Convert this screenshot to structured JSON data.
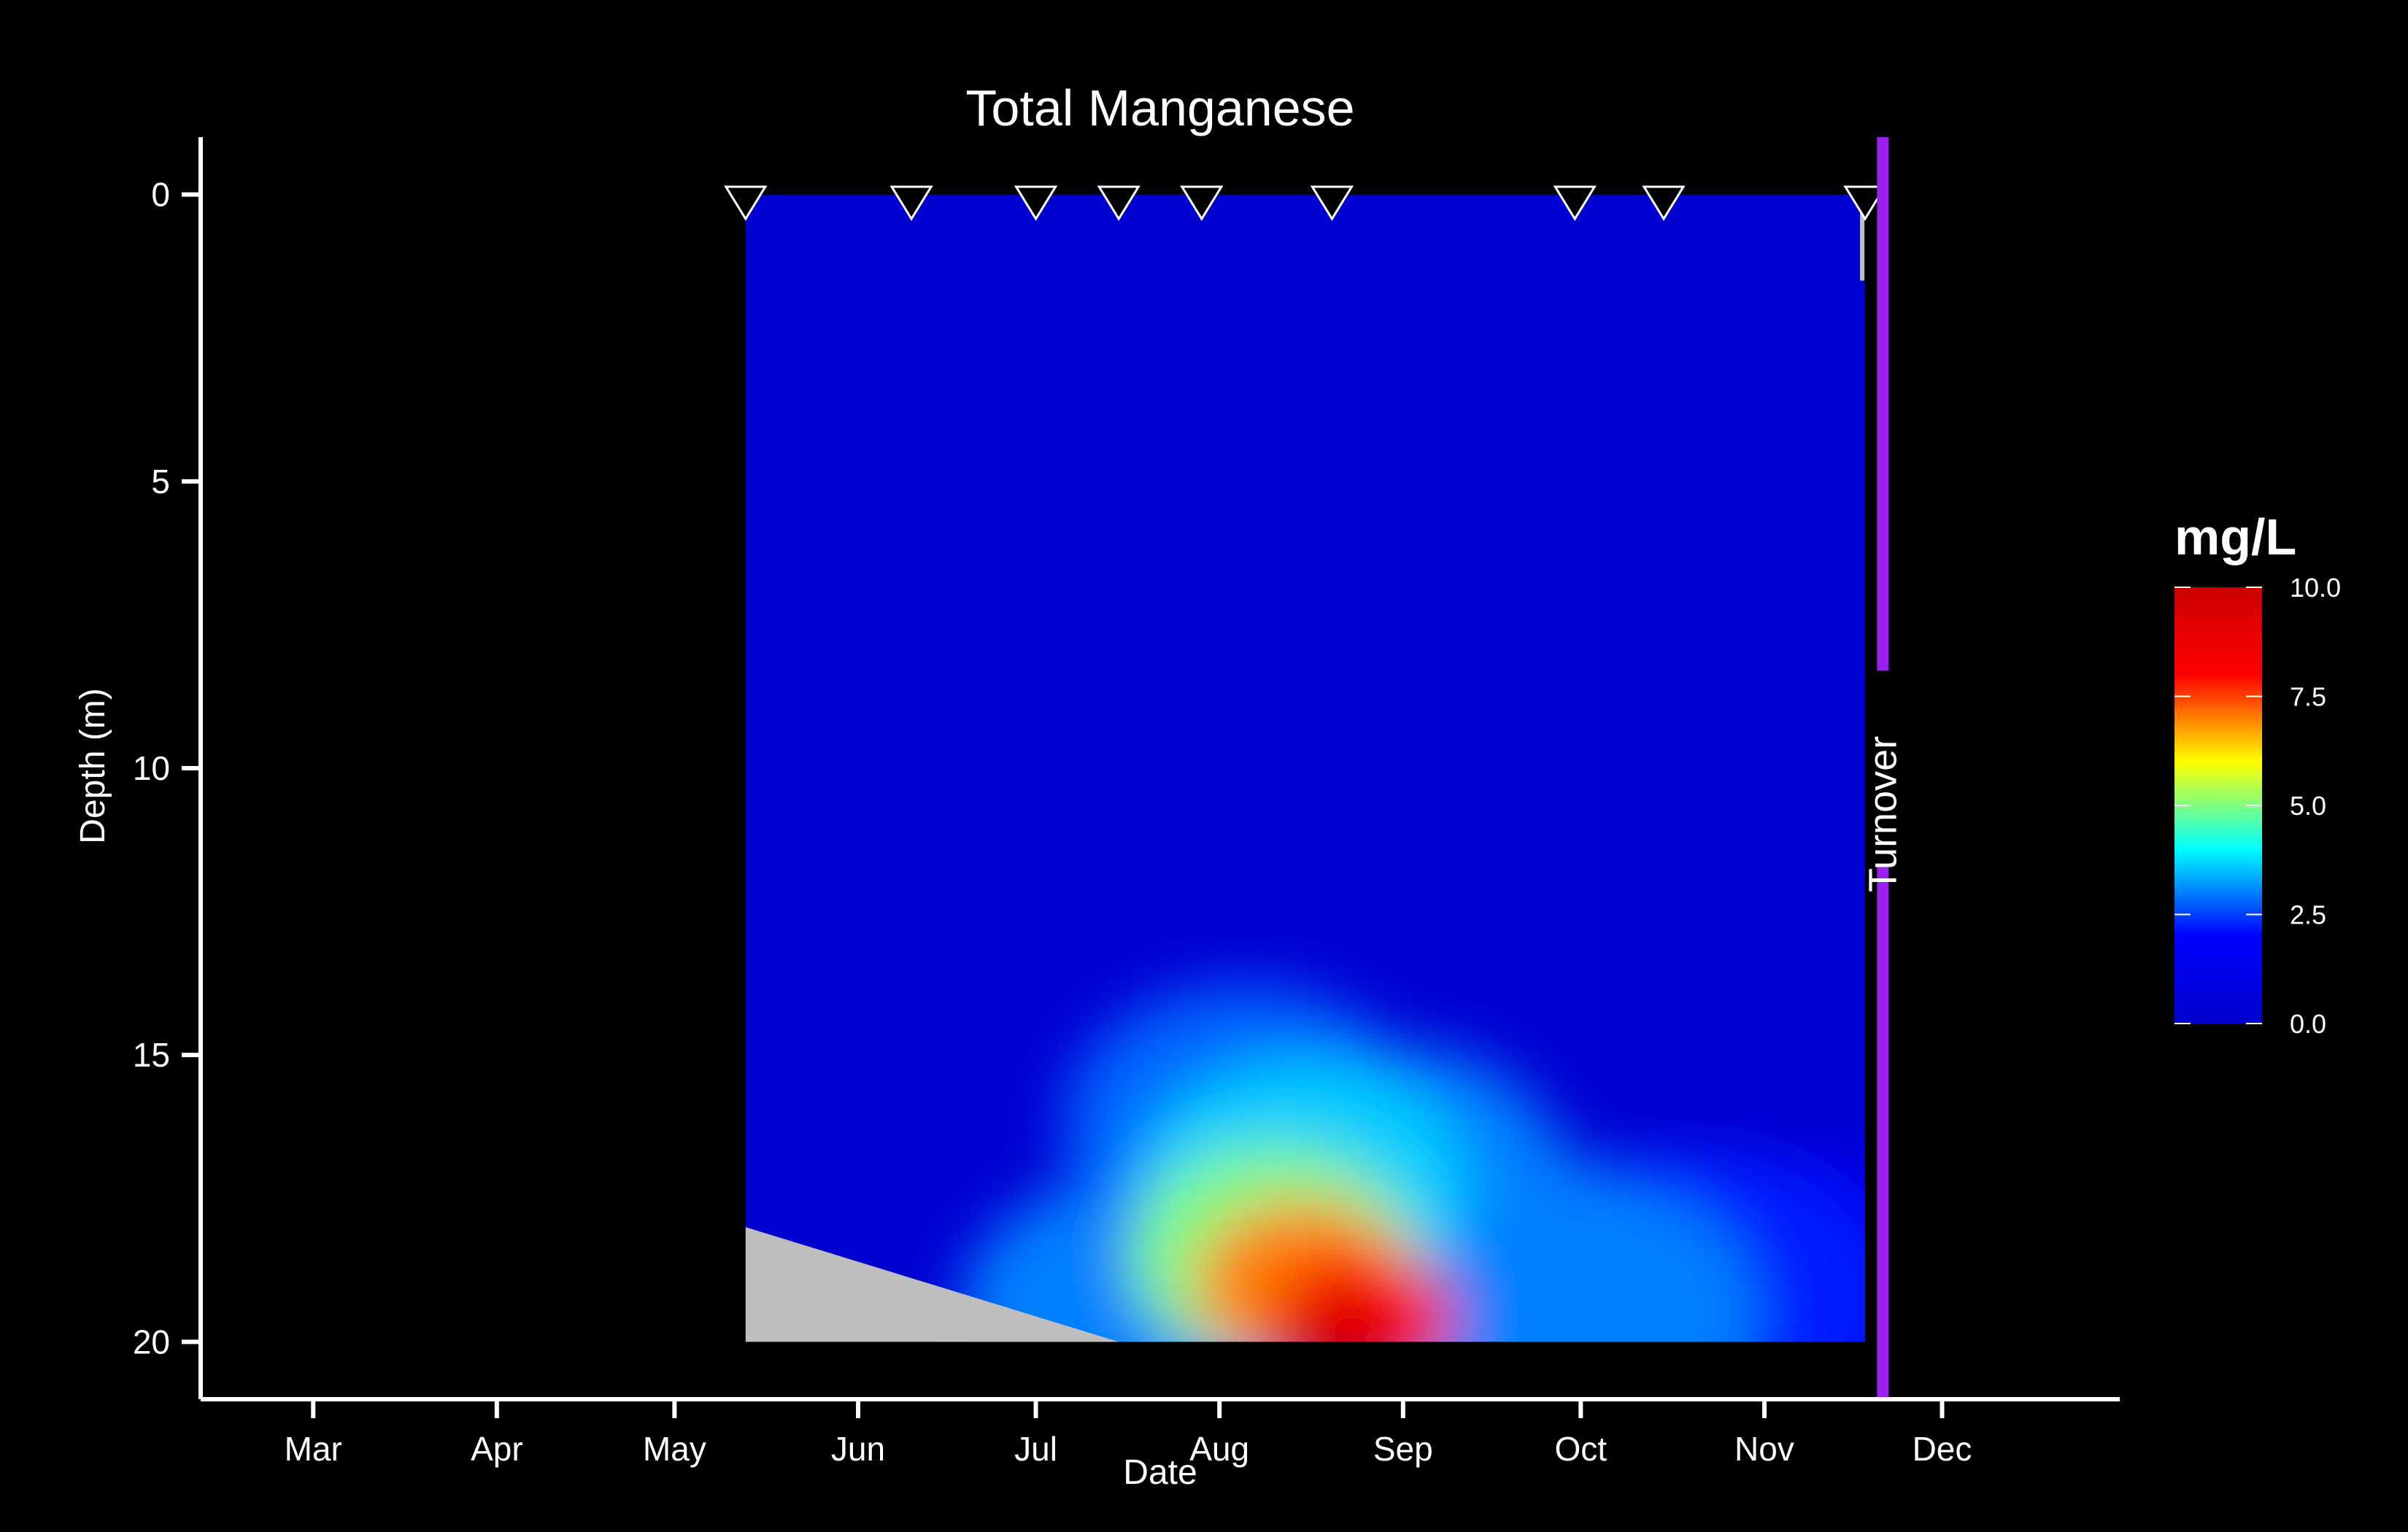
{
  "chart_data": {
    "type": "heatmap",
    "title": "Total Manganese",
    "xlabel": "Date",
    "ylabel": "Depth (m)",
    "x_range": [
      "2022-02-10",
      "2022-12-31"
    ],
    "y_range": [
      -1,
      21
    ],
    "y_reversed": true,
    "x_ticks": [
      {
        "label": "Mar",
        "date": "2022-03-01"
      },
      {
        "label": "Apr",
        "date": "2022-04-01"
      },
      {
        "label": "May",
        "date": "2022-05-01"
      },
      {
        "label": "Jun",
        "date": "2022-06-01"
      },
      {
        "label": "Jul",
        "date": "2022-07-01"
      },
      {
        "label": "Aug",
        "date": "2022-08-01"
      },
      {
        "label": "Sep",
        "date": "2022-09-01"
      },
      {
        "label": "Oct",
        "date": "2022-10-01"
      },
      {
        "label": "Nov",
        "date": "2022-11-01"
      },
      {
        "label": "Dec",
        "date": "2022-12-01"
      }
    ],
    "y_ticks": [
      {
        "label": "0",
        "value": 0
      },
      {
        "label": "5",
        "value": 5
      },
      {
        "label": "10",
        "value": 10
      },
      {
        "label": "15",
        "value": 15
      },
      {
        "label": "20",
        "value": 20
      }
    ],
    "sample_dates": [
      "2022-05-13",
      "2022-06-10",
      "2022-07-01",
      "2022-07-15",
      "2022-07-29",
      "2022-08-20",
      "2022-09-30",
      "2022-10-15",
      "2022-11-18"
    ],
    "grid": false,
    "colorbar": {
      "title": "mg/L",
      "min": 0,
      "max": 10,
      "ticks": [
        {
          "label": "0.0",
          "value": 0
        },
        {
          "label": "2.5",
          "value": 2.5
        },
        {
          "label": "5.0",
          "value": 5
        },
        {
          "label": "7.5",
          "value": 7.5
        },
        {
          "label": "10.0",
          "value": 10
        }
      ],
      "colors": [
        "#0000CC",
        "#0000FF",
        "#00FFFF",
        "#FFFF00",
        "#FF0000",
        "#CC0000"
      ]
    },
    "bottom_polygon": {
      "color": "#BEBEBE",
      "points": [
        {
          "date": "2022-05-13",
          "depth": 18
        },
        {
          "date": "2022-07-15",
          "depth": 20
        },
        {
          "date": "2022-05-13",
          "depth": 20
        }
      ]
    },
    "turnover": {
      "label": "Turnover",
      "date": "2022-11-21",
      "color": "#9B20F0"
    },
    "hotspots": [
      {
        "date": "2022-08-20",
        "depth": 20,
        "value": 9.6
      },
      {
        "date": "2022-08-25",
        "depth": 19.6,
        "value": 8.0
      },
      {
        "date": "2022-08-15",
        "depth": 19,
        "value": 7.0
      },
      {
        "date": "2022-08-10",
        "depth": 18.5,
        "value": 5.0
      },
      {
        "date": "2022-08-15",
        "depth": 17.3,
        "value": 3.6
      },
      {
        "date": "2022-08-05",
        "depth": 16.2,
        "value": 2.8
      },
      {
        "date": "2022-08-30",
        "depth": 17.2,
        "value": 3.0
      },
      {
        "date": "2022-09-15",
        "depth": 18.8,
        "value": 3.0
      },
      {
        "date": "2022-10-01",
        "depth": 19.5,
        "value": 3.0
      },
      {
        "date": "2022-10-20",
        "depth": 19.2,
        "value": 2.2
      },
      {
        "date": "2022-07-18",
        "depth": 19.5,
        "value": 3.0
      },
      {
        "date": "2022-11-05",
        "depth": 19.5,
        "value": 1.5
      }
    ]
  }
}
